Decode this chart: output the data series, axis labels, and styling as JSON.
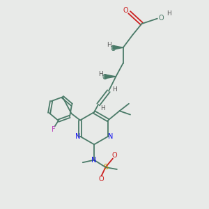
{
  "bg_color": "#e8eae8",
  "bond_color": "#4a7a68",
  "n_color": "#1010ee",
  "o_color": "#cc2020",
  "s_color": "#bb9900",
  "f_color": "#bb44bb",
  "h_color": "#555555",
  "figsize": [
    3.0,
    3.0
  ],
  "dpi": 100,
  "xlim": [
    0,
    10
  ],
  "ylim": [
    0,
    10
  ]
}
